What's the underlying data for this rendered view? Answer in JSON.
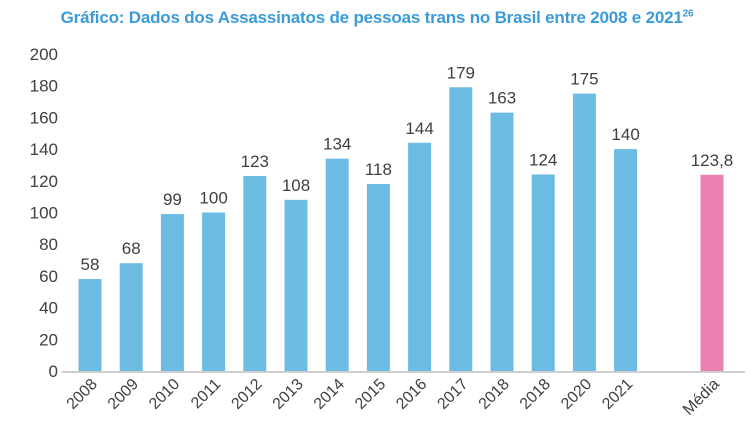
{
  "chart_data": {
    "type": "bar",
    "title": "Gráfico: Dados dos Assassinatos de pessoas trans no Brasil entre 2008 e 2021",
    "title_footnote": "26",
    "categories": [
      "2008",
      "2009",
      "2010",
      "2011",
      "2012",
      "2013",
      "2014",
      "2015",
      "2016",
      "2017",
      "2018",
      "2018",
      "2020",
      "2021",
      "",
      "Média"
    ],
    "values": [
      58,
      68,
      99,
      100,
      123,
      108,
      134,
      118,
      144,
      179,
      163,
      124,
      175,
      140,
      null,
      123.8
    ],
    "data_labels": [
      "58",
      "68",
      "99",
      "100",
      "123",
      "108",
      "134",
      "118",
      "144",
      "179",
      "163",
      "124",
      "175",
      "140",
      "",
      "123,8"
    ],
    "ylim": [
      0,
      200
    ],
    "yticks": [
      0,
      20,
      40,
      60,
      80,
      100,
      120,
      140,
      160,
      180,
      200
    ],
    "grid": false,
    "legend": "none",
    "colors": {
      "bar": "#6cbbe3",
      "average_bar": "#ec80b3",
      "title": "#3b9bd8"
    }
  }
}
